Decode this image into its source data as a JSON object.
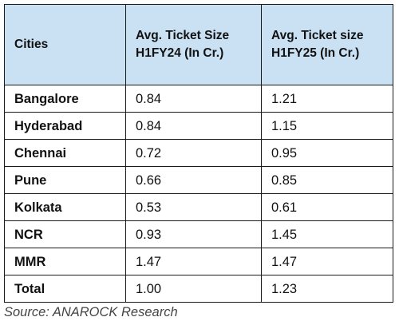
{
  "table": {
    "headers": [
      "Cities",
      "Avg. Ticket Size H1FY24 (In Cr.)",
      "Avg. Ticket size H1FY25 (In Cr.)"
    ],
    "rows": [
      [
        "Bangalore",
        "0.84",
        "1.21"
      ],
      [
        "Hyderabad",
        "0.84",
        "1.15"
      ],
      [
        "Chennai",
        "0.72",
        "0.95"
      ],
      [
        "Pune",
        "0.66",
        "0.85"
      ],
      [
        "Kolkata",
        "0.53",
        "0.61"
      ],
      [
        "NCR",
        "0.93",
        "1.45"
      ],
      [
        "MMR",
        "1.47",
        "1.47"
      ],
      [
        "Total",
        "1.00",
        "1.23"
      ]
    ]
  },
  "source": "Source: ANAROCK Research",
  "colors": {
    "header_background": "#c9e1f3",
    "border": "#1a1a1a",
    "source_text": "#444444"
  }
}
